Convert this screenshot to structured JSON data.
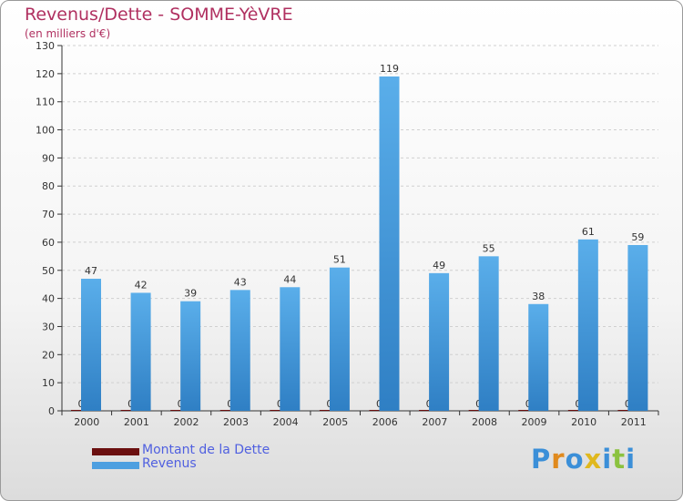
{
  "title": "Revenus/Dette - SOMME-YèVRE",
  "subtitle": "(en milliers d'€)",
  "chart_data": {
    "type": "bar",
    "title": "Revenus/Dette - SOMME-YèVRE",
    "ylabel": "(en milliers d'€)",
    "xlabel": "",
    "categories": [
      "2000",
      "2001",
      "2002",
      "2003",
      "2004",
      "2005",
      "2006",
      "2007",
      "2008",
      "2009",
      "2010",
      "2011"
    ],
    "series": [
      {
        "name": "Montant de la Dette",
        "color": "#6b0f0f",
        "values": [
          0,
          0,
          0,
          0,
          0,
          0,
          0,
          0,
          0,
          0,
          0,
          0
        ]
      },
      {
        "name": "Revenus",
        "color": "#4d9fe0",
        "values": [
          47,
          42,
          39,
          43,
          44,
          51,
          119,
          49,
          55,
          38,
          61,
          59
        ]
      }
    ],
    "ylim": [
      0,
      130
    ],
    "yticks": [
      0,
      10,
      20,
      30,
      40,
      50,
      60,
      70,
      80,
      90,
      100,
      110,
      120,
      130
    ],
    "grid": true,
    "legend": "bottom-left"
  },
  "legend": {
    "items": [
      {
        "label": "Montant de la Dette",
        "color": "#6b0f0f"
      },
      {
        "label": "Revenus",
        "color": "#4d9fe0"
      }
    ]
  },
  "logo": {
    "text": "Proxiti"
  }
}
